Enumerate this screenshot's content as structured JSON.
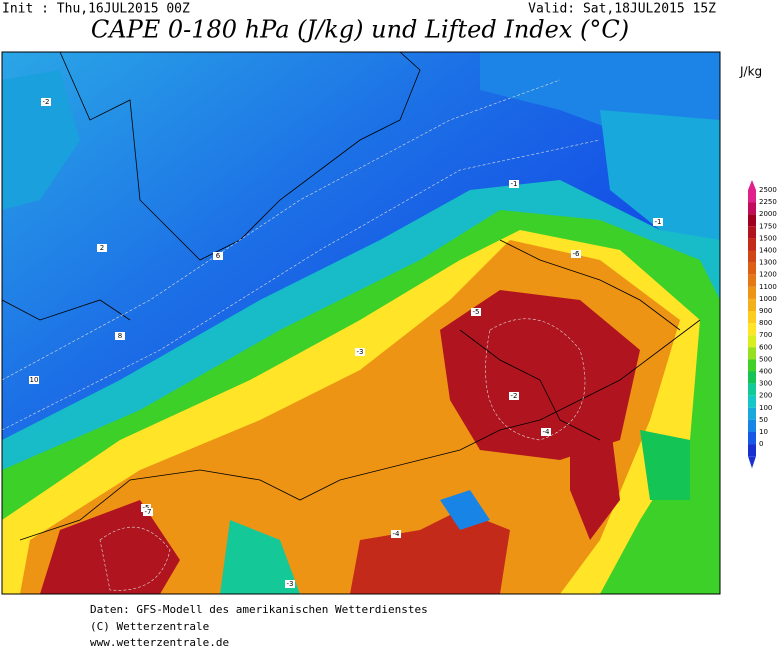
{
  "header": {
    "init": "Init : Thu,16JUL2015 00Z",
    "valid": "Valid: Sat,18JUL2015 15Z",
    "title": "CAPE 0-180 hPa (J/kg) und Lifted Index (°C)"
  },
  "legend": {
    "unit": "J/kg",
    "levels": [
      2500,
      2250,
      2000,
      1750,
      1500,
      1400,
      1300,
      1200,
      1100,
      1000,
      900,
      800,
      700,
      600,
      500,
      400,
      300,
      200,
      100,
      50,
      10,
      0
    ],
    "colors": [
      "#e0208c",
      "#c00c5a",
      "#a0001e",
      "#b0141e",
      "#c42a1a",
      "#d04616",
      "#dc6014",
      "#e47814",
      "#ee9414",
      "#f4b01c",
      "#fccc1e",
      "#ffe428",
      "#d8ee1e",
      "#96e01e",
      "#40d028",
      "#14c454",
      "#14c898",
      "#16c6c8",
      "#18a8dc",
      "#1884e6",
      "#1858e6",
      "#1830d2"
    ]
  },
  "map": {
    "contour_labels": [
      "-2",
      "-5",
      "-7",
      "-4",
      "-3",
      "-1",
      "2",
      "6",
      "8",
      "10",
      "-6",
      "-2",
      "-1",
      "-5",
      "-3",
      "-4"
    ]
  },
  "footer": [
    "Daten: GFS-Modell des amerikanischen Wetterdienstes",
    "(C) Wetterzentrale",
    "www.wetterzentrale.de"
  ]
}
